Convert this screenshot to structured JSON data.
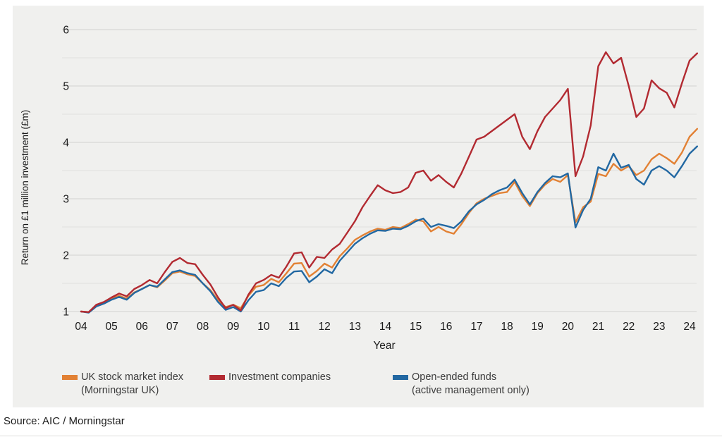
{
  "source": "Source: AIC / Morningstar",
  "colors": {
    "panel_background": "#f0f0ee",
    "major_gridline": "#d8d8d6",
    "minor_gridline": "#e3e3e1",
    "tick_text": "#1a1a1a",
    "uk_index": "#e28134",
    "investment_companies": "#b22a31",
    "open_ended": "#2268a2"
  },
  "legend": {
    "items": [
      {
        "key": "uk-index",
        "line1": "UK stock market index",
        "line2": "(Morningstar UK)"
      },
      {
        "key": "investment-companies",
        "line1": "Investment companies",
        "line2": ""
      },
      {
        "key": "open-ended-funds",
        "line1": "Open-ended funds",
        "line2": "(active management only)"
      }
    ]
  },
  "chart_data": {
    "type": "line",
    "title": "",
    "xlabel": "Year",
    "ylabel": "Return on £1 million investment (£m)",
    "ylim": [
      1,
      6
    ],
    "ytick_labels": [
      "1",
      "2",
      "3",
      "4",
      "5",
      "6"
    ],
    "minor_grid_step": 0.5,
    "grid": true,
    "legend_position": "bottom",
    "xtick_labels": [
      "04",
      "05",
      "06",
      "07",
      "08",
      "09",
      "10",
      "11",
      "12",
      "13",
      "14",
      "15",
      "16",
      "17",
      "18",
      "19",
      "20",
      "21",
      "22",
      "23",
      "24"
    ],
    "xtick_values": [
      4,
      5,
      6,
      7,
      8,
      9,
      10,
      11,
      12,
      13,
      14,
      15,
      16,
      17,
      18,
      19,
      20,
      21,
      22,
      23,
      24
    ],
    "x": [
      4,
      4.25,
      4.5,
      4.75,
      5,
      5.25,
      5.5,
      5.75,
      6,
      6.25,
      6.5,
      6.75,
      7,
      7.25,
      7.5,
      7.75,
      8,
      8.25,
      8.5,
      8.75,
      9,
      9.25,
      9.5,
      9.75,
      10,
      10.25,
      10.5,
      10.75,
      11,
      11.25,
      11.5,
      11.75,
      12,
      12.25,
      12.5,
      12.75,
      13,
      13.25,
      13.5,
      13.75,
      14,
      14.25,
      14.5,
      14.75,
      15,
      15.25,
      15.5,
      15.75,
      16,
      16.25,
      16.5,
      16.75,
      17,
      17.25,
      17.5,
      17.75,
      18,
      18.25,
      18.5,
      18.75,
      19,
      19.25,
      19.5,
      19.75,
      20,
      20.25,
      20.5,
      20.75,
      21,
      21.25,
      21.5,
      21.75,
      22,
      22.25,
      22.5,
      22.75,
      23,
      23.25,
      23.5,
      23.75,
      24,
      24.25
    ],
    "series": [
      {
        "name": "UK stock market index (Morningstar UK)",
        "color_key": "uk_index",
        "values": [
          1.0,
          0.99,
          1.1,
          1.15,
          1.23,
          1.28,
          1.23,
          1.34,
          1.4,
          1.47,
          1.43,
          1.55,
          1.68,
          1.71,
          1.66,
          1.63,
          1.5,
          1.38,
          1.2,
          1.08,
          1.12,
          1.06,
          1.28,
          1.44,
          1.47,
          1.58,
          1.52,
          1.68,
          1.85,
          1.86,
          1.62,
          1.72,
          1.85,
          1.78,
          1.98,
          2.12,
          2.27,
          2.35,
          2.42,
          2.47,
          2.45,
          2.5,
          2.48,
          2.55,
          2.63,
          2.6,
          2.42,
          2.5,
          2.42,
          2.38,
          2.55,
          2.75,
          2.92,
          3.0,
          3.05,
          3.1,
          3.12,
          3.3,
          3.05,
          2.87,
          3.1,
          3.25,
          3.35,
          3.3,
          3.42,
          2.58,
          2.85,
          2.95,
          3.44,
          3.4,
          3.62,
          3.5,
          3.58,
          3.42,
          3.5,
          3.7,
          3.8,
          3.72,
          3.62,
          3.82,
          4.1,
          4.24
        ]
      },
      {
        "name": "Open-ended funds (active management only)",
        "color_key": "open_ended",
        "values": [
          1.0,
          0.98,
          1.09,
          1.14,
          1.21,
          1.26,
          1.21,
          1.33,
          1.4,
          1.47,
          1.44,
          1.57,
          1.7,
          1.73,
          1.68,
          1.65,
          1.5,
          1.36,
          1.17,
          1.03,
          1.08,
          1.0,
          1.2,
          1.35,
          1.38,
          1.5,
          1.45,
          1.6,
          1.71,
          1.72,
          1.52,
          1.62,
          1.75,
          1.68,
          1.9,
          2.05,
          2.2,
          2.3,
          2.38,
          2.44,
          2.43,
          2.47,
          2.46,
          2.52,
          2.6,
          2.65,
          2.5,
          2.55,
          2.52,
          2.48,
          2.6,
          2.78,
          2.9,
          2.98,
          3.08,
          3.15,
          3.2,
          3.34,
          3.1,
          2.9,
          3.12,
          3.28,
          3.4,
          3.38,
          3.45,
          2.49,
          2.8,
          3.0,
          3.56,
          3.5,
          3.8,
          3.55,
          3.6,
          3.35,
          3.25,
          3.5,
          3.58,
          3.5,
          3.38,
          3.58,
          3.8,
          3.93
        ]
      },
      {
        "name": "Investment companies",
        "color_key": "investment_companies",
        "values": [
          1.0,
          0.99,
          1.12,
          1.17,
          1.25,
          1.32,
          1.27,
          1.4,
          1.47,
          1.56,
          1.5,
          1.7,
          1.88,
          1.95,
          1.86,
          1.84,
          1.65,
          1.48,
          1.25,
          1.06,
          1.12,
          1.02,
          1.3,
          1.5,
          1.56,
          1.65,
          1.6,
          1.8,
          2.03,
          2.05,
          1.78,
          1.97,
          1.95,
          2.1,
          2.2,
          2.4,
          2.6,
          2.85,
          3.05,
          3.24,
          3.15,
          3.1,
          3.12,
          3.2,
          3.46,
          3.5,
          3.32,
          3.42,
          3.3,
          3.2,
          3.45,
          3.75,
          4.05,
          4.1,
          4.2,
          4.3,
          4.4,
          4.5,
          4.1,
          3.88,
          4.2,
          4.45,
          4.6,
          4.75,
          4.95,
          3.4,
          3.75,
          4.3,
          5.35,
          5.6,
          5.4,
          5.5,
          5.0,
          4.45,
          4.6,
          5.1,
          4.96,
          4.88,
          4.62,
          5.05,
          5.45,
          5.58
        ]
      }
    ]
  }
}
